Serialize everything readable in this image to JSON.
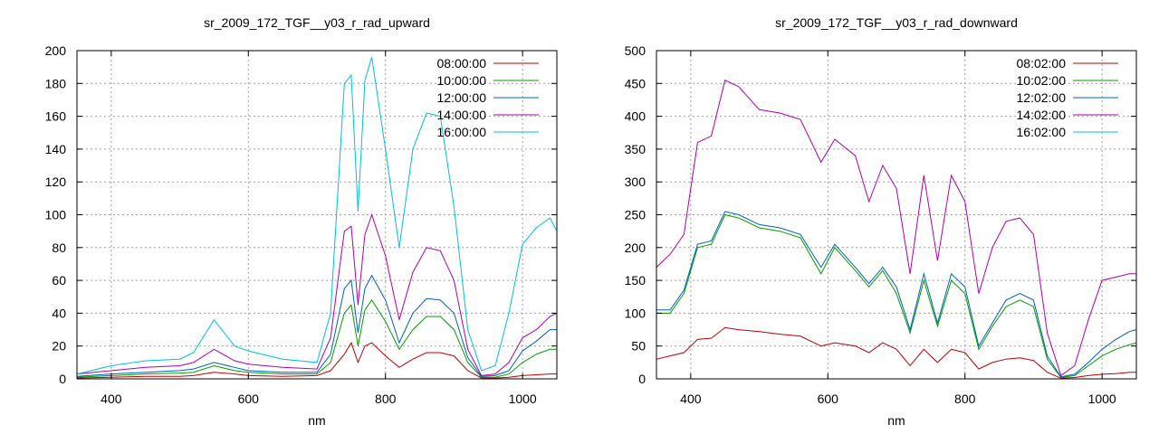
{
  "chart_data": [
    {
      "type": "line",
      "title": "sr_2009_172_TGF__y03_r_rad_upward",
      "xlabel": "nm",
      "ylabel": "",
      "xlim": [
        350,
        1050
      ],
      "ylim": [
        0,
        200
      ],
      "xticks": [
        400,
        600,
        800,
        1000
      ],
      "yticks": [
        0,
        20,
        40,
        60,
        80,
        100,
        120,
        140,
        160,
        180,
        200
      ],
      "grid": true,
      "legend_position": "top-right",
      "x": [
        350,
        400,
        450,
        500,
        520,
        550,
        580,
        600,
        650,
        700,
        720,
        740,
        750,
        760,
        770,
        780,
        800,
        820,
        840,
        860,
        880,
        900,
        920,
        940,
        960,
        980,
        1000,
        1020,
        1040,
        1050
      ],
      "series": [
        {
          "name": "08:00:00",
          "color": "#c00000",
          "values": [
            0.5,
            1,
            1.5,
            1.5,
            2,
            4,
            3,
            2,
            1.5,
            2,
            5,
            15,
            22,
            10,
            20,
            22,
            14,
            7,
            12,
            16,
            16,
            14,
            5,
            0.5,
            0.5,
            1,
            2,
            2.5,
            3,
            3
          ]
        },
        {
          "name": "10:00:00",
          "color": "#00a000",
          "values": [
            1,
            2,
            3,
            3.5,
            4,
            8,
            5,
            4,
            3,
            3,
            10,
            40,
            45,
            20,
            42,
            48,
            35,
            18,
            30,
            38,
            38,
            30,
            10,
            1,
            1,
            3,
            10,
            15,
            18,
            18
          ]
        },
        {
          "name": "12:00:00",
          "color": "#0060c0",
          "values": [
            1.5,
            3,
            4,
            5,
            6,
            10,
            7,
            5,
            4,
            4,
            15,
            55,
            60,
            28,
            55,
            63,
            48,
            22,
            40,
            49,
            48,
            40,
            13,
            1.5,
            2,
            5,
            17,
            23,
            30,
            30
          ]
        },
        {
          "name": "14:00:00",
          "color": "#b000b0",
          "values": [
            3,
            5,
            7,
            8,
            10,
            18,
            11,
            9,
            7,
            6,
            25,
            90,
            93,
            45,
            88,
            100,
            75,
            36,
            65,
            80,
            78,
            60,
            18,
            2,
            3,
            10,
            25,
            30,
            38,
            40
          ]
        },
        {
          "name": "16:00:00",
          "color": "#00c0e0",
          "values": [
            3,
            8,
            11,
            12,
            16,
            36,
            20,
            17,
            12,
            10,
            40,
            180,
            185,
            102,
            182,
            196,
            140,
            80,
            140,
            162,
            160,
            105,
            30,
            5,
            8,
            40,
            82,
            92,
            98,
            90
          ]
        }
      ]
    },
    {
      "type": "line",
      "title": "sr_2009_172_TGF__y03_r_rad_downward",
      "xlabel": "nm",
      "ylabel": "",
      "xlim": [
        350,
        1050
      ],
      "ylim": [
        0,
        500
      ],
      "xticks": [
        400,
        600,
        800,
        1000
      ],
      "yticks": [
        0,
        50,
        100,
        150,
        200,
        250,
        300,
        350,
        400,
        450,
        500
      ],
      "grid": true,
      "legend_position": "top-right",
      "x": [
        350,
        370,
        390,
        410,
        430,
        450,
        470,
        500,
        530,
        560,
        590,
        610,
        640,
        660,
        680,
        700,
        720,
        740,
        760,
        780,
        800,
        820,
        840,
        860,
        880,
        900,
        920,
        940,
        960,
        980,
        1000,
        1020,
        1040,
        1050
      ],
      "series": [
        {
          "name": "08:02:00",
          "color": "#c00000",
          "values": [
            30,
            35,
            40,
            60,
            62,
            78,
            75,
            72,
            68,
            65,
            50,
            55,
            50,
            40,
            55,
            45,
            20,
            45,
            25,
            45,
            40,
            15,
            25,
            30,
            32,
            28,
            10,
            1,
            2,
            5,
            7,
            8,
            10,
            10
          ]
        },
        {
          "name": "10:02:00",
          "color": "#00a000",
          "values": [
            100,
            100,
            130,
            200,
            205,
            250,
            245,
            230,
            225,
            215,
            160,
            200,
            165,
            140,
            165,
            130,
            70,
            150,
            80,
            150,
            130,
            45,
            80,
            110,
            120,
            110,
            30,
            2,
            5,
            20,
            35,
            45,
            52,
            55
          ]
        },
        {
          "name": "12:02:00",
          "color": "#0060c0",
          "values": [
            105,
            105,
            135,
            205,
            210,
            255,
            250,
            235,
            230,
            220,
            170,
            205,
            170,
            145,
            170,
            140,
            75,
            160,
            85,
            160,
            140,
            50,
            85,
            120,
            130,
            120,
            35,
            3,
            7,
            25,
            45,
            60,
            72,
            75
          ]
        },
        {
          "name": "14:02:00",
          "color": "#b000b0",
          "values": [
            170,
            190,
            220,
            360,
            370,
            455,
            445,
            410,
            405,
            395,
            330,
            365,
            340,
            270,
            325,
            290,
            160,
            310,
            180,
            310,
            270,
            130,
            200,
            240,
            245,
            220,
            70,
            5,
            20,
            90,
            150,
            155,
            160,
            160
          ]
        },
        {
          "name": "16:02:00",
          "color": "#00c0e0",
          "values": [
            0,
            0,
            0,
            0,
            0,
            0,
            0,
            0,
            0,
            0,
            0,
            0,
            0,
            0,
            0,
            0,
            0,
            0,
            0,
            0,
            0,
            0,
            0,
            0,
            0,
            0,
            0,
            0,
            0,
            0,
            0,
            0,
            0,
            0
          ]
        }
      ]
    }
  ]
}
